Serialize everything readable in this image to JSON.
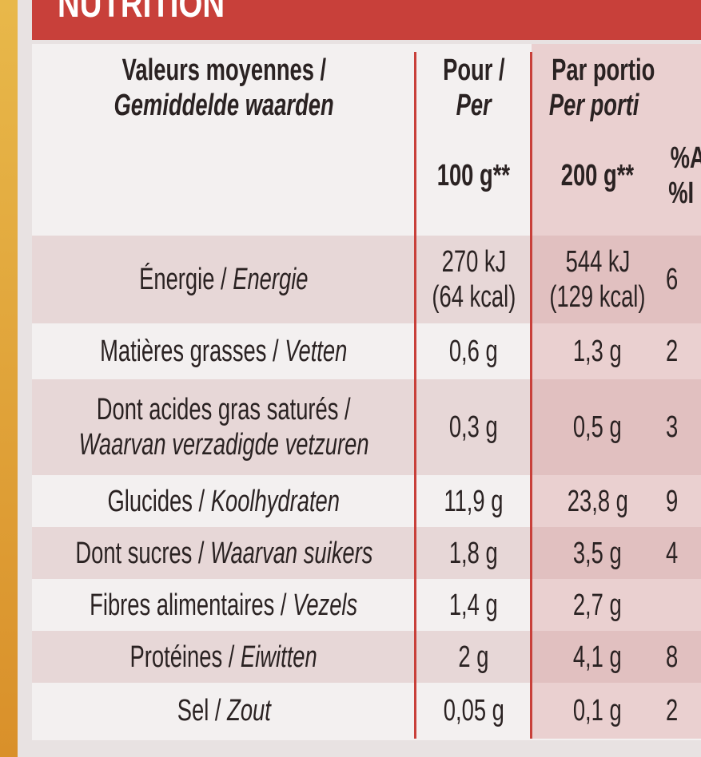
{
  "header": {
    "title": "NUTRITION"
  },
  "table": {
    "columns": [
      {
        "line1": "Valeurs moyennes /",
        "line2": "Gemiddelde waarden"
      },
      {
        "line1": "Pour /",
        "line2": "Per",
        "line3": "100 g**"
      },
      {
        "line1": "Par portio",
        "line2": "Per porti",
        "line3": "200 g**"
      },
      {
        "line1": "%A",
        "line2": "%I"
      }
    ],
    "rows": [
      {
        "fr": "Énergie /",
        "nl": "Energie",
        "per100": "270 kJ",
        "per100b": "(64 kcal)",
        "portion": "544 kJ",
        "portionb": "(129 kcal)",
        "pct": "6"
      },
      {
        "fr": "Matières grasses /",
        "nl": "Vetten",
        "per100": "0,6 g",
        "portion": "1,3 g",
        "pct": "2"
      },
      {
        "fr": "Dont acides gras saturés /",
        "nl": "Waarvan verzadigde vetzuren",
        "per100": "0,3 g",
        "portion": "0,5 g",
        "pct": "3"
      },
      {
        "fr": "Glucides /",
        "nl": "Koolhydraten",
        "per100": "11,9 g",
        "portion": "23,8 g",
        "pct": "9"
      },
      {
        "fr": "Dont sucres /",
        "nl": "Waarvan suikers",
        "per100": "1,8 g",
        "portion": "3,5 g",
        "pct": "4"
      },
      {
        "fr": "Fibres alimentaires /",
        "nl": "Vezels",
        "per100": "1,4 g",
        "portion": "2,7 g"
      },
      {
        "fr": "Protéines /",
        "nl": "Eiwitten",
        "per100": "2 g",
        "portion": "4,1 g",
        "pct": "8"
      },
      {
        "fr": "Sel /",
        "nl": "Zout",
        "per100": "0,05 g",
        "portion": "0,1 g",
        "pct": "2"
      }
    ]
  }
}
